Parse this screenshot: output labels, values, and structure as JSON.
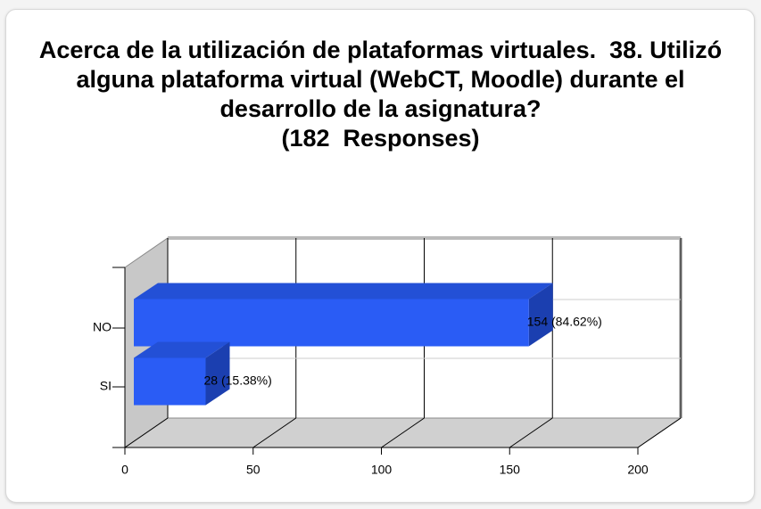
{
  "chart_data": {
    "type": "bar3d_horizontal",
    "title": "Acerca de la utilización de plataformas virtuales.  38. Utilizó alguna plataforma virtual (WebCT, Moodle) durante el desarrollo de la asignatura?",
    "subtitle": "(182  Responses)",
    "categories": [
      "NO",
      "SI"
    ],
    "values": [
      154,
      28
    ],
    "value_labels": [
      "154 (84.62%)",
      "28 (15.38%)"
    ],
    "color": "#2a5cf5",
    "xlim": [
      0,
      200
    ],
    "xticks": [
      0,
      50,
      100,
      150,
      200
    ],
    "grid": true
  }
}
